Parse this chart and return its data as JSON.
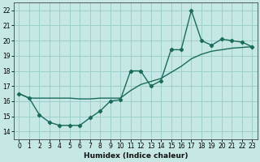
{
  "xlabel": "Humidex (Indice chaleur)",
  "bg_color": "#c5e8e5",
  "grid_color": "#9dcfcc",
  "line_color": "#1a6b5a",
  "xlim": [
    -0.5,
    23.5
  ],
  "ylim": [
    13.5,
    22.5
  ],
  "xticks": [
    0,
    1,
    2,
    3,
    4,
    5,
    6,
    7,
    8,
    9,
    10,
    11,
    12,
    13,
    14,
    15,
    16,
    17,
    18,
    19,
    20,
    21,
    22,
    23
  ],
  "yticks": [
    14,
    15,
    16,
    17,
    18,
    19,
    20,
    21,
    22
  ],
  "data_x": [
    0,
    1,
    2,
    3,
    4,
    5,
    6,
    7,
    8,
    9,
    10,
    11,
    12,
    13,
    14,
    15,
    16,
    17,
    18,
    19,
    20,
    21,
    22,
    23
  ],
  "data_y": [
    16.5,
    16.2,
    15.1,
    14.6,
    14.4,
    14.4,
    14.4,
    14.9,
    15.35,
    16.0,
    16.1,
    18.0,
    18.0,
    17.0,
    17.35,
    19.4,
    19.4,
    22.0,
    20.0,
    19.7,
    20.1,
    20.0,
    19.9,
    19.6
  ],
  "trend_x": [
    0,
    1,
    2,
    3,
    4,
    5,
    6,
    7,
    8,
    9,
    10,
    11,
    12,
    13,
    14,
    15,
    16,
    17,
    18,
    19,
    20,
    21,
    22,
    23
  ],
  "trend_y": [
    16.5,
    16.2,
    16.2,
    16.2,
    16.2,
    16.2,
    16.15,
    16.15,
    16.2,
    16.2,
    16.2,
    16.7,
    17.1,
    17.3,
    17.5,
    17.9,
    18.3,
    18.8,
    19.1,
    19.3,
    19.4,
    19.5,
    19.55,
    19.6
  ]
}
